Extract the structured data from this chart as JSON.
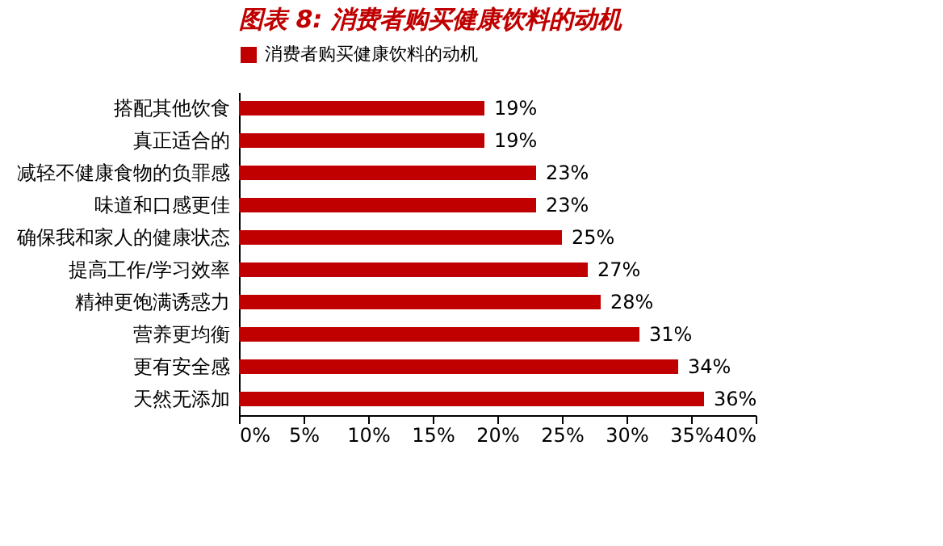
{
  "chart_data": {
    "type": "bar",
    "orientation": "horizontal",
    "title": "图表 8: 消费者购买健康饮料的动机",
    "categories": [
      "搭配其他饮食",
      "真正适合的",
      "减轻不健康食物的负罪感",
      "味道和口感更佳",
      "确保我和家人的健康状态",
      "提高工作/学习效率",
      "精神更饱满诱惑力",
      "营养更均衡",
      "更有安全感",
      "天然无添加"
    ],
    "series": [
      {
        "name": "消费者购买健康饮料的动机",
        "color": "#c00000",
        "values": [
          19,
          19,
          23,
          23,
          25,
          27,
          28,
          31,
          34,
          36
        ],
        "value_labels": [
          "19%",
          "19%",
          "23%",
          "23%",
          "25%",
          "27%",
          "28%",
          "31%",
          "34%",
          "36%"
        ]
      }
    ],
    "xlim": [
      0,
      40
    ],
    "xticks": [
      {
        "value": 0,
        "label": "0%"
      },
      {
        "value": 5,
        "label": "5%"
      },
      {
        "value": 10,
        "label": "10%"
      },
      {
        "value": 15,
        "label": "15%"
      },
      {
        "value": 20,
        "label": "20%"
      },
      {
        "value": 25,
        "label": "25%"
      },
      {
        "value": 30,
        "label": "30%"
      },
      {
        "value": 35,
        "label": "35%"
      },
      {
        "value": 40,
        "label": "40%"
      }
    ],
    "grid": false,
    "legend": "top"
  }
}
